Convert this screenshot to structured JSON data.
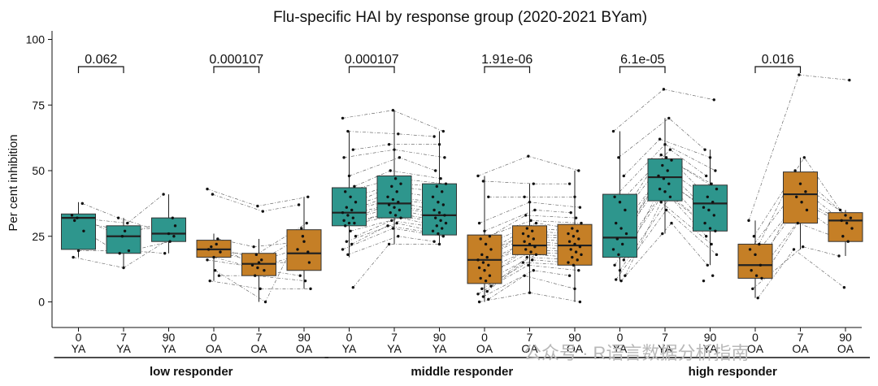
{
  "chart_data": {
    "type": "box",
    "title": "Flu-specific HAI by response group (2020-2021 BYam)",
    "ylabel": "Per cent inhibition",
    "ylim": [
      -5,
      103
    ],
    "yticks": [
      0,
      25,
      50,
      75,
      100
    ],
    "colors": {
      "YA": "#2e968d",
      "OA": "#c57f26"
    },
    "groups": [
      {
        "name": "low responder",
        "boxes": [
          {
            "day": "0",
            "age": "YA",
            "min": 17,
            "q1": 20,
            "median": 32,
            "q3": 33.5,
            "max": 38
          },
          {
            "day": "7",
            "age": "YA",
            "min": 13,
            "q1": 18.5,
            "median": 25,
            "q3": 29,
            "max": 32
          },
          {
            "day": "90",
            "age": "YA",
            "min": 18.5,
            "q1": 23,
            "median": 26,
            "q3": 32,
            "max": 41
          },
          {
            "day": "0",
            "age": "OA",
            "min": 8,
            "q1": 17,
            "median": 20,
            "q3": 23.5,
            "max": 26
          },
          {
            "day": "7",
            "age": "OA",
            "min": 0,
            "q1": 10,
            "median": 14.5,
            "q3": 18.5,
            "max": 24
          },
          {
            "day": "90",
            "age": "OA",
            "min": 5,
            "q1": 12,
            "median": 18.5,
            "q3": 27.5,
            "max": 40
          }
        ],
        "pvalues": [
          {
            "label": "0.062"
          },
          {
            "label": "0.000107"
          }
        ]
      },
      {
        "name": "middle responder",
        "boxes": [
          {
            "day": "0",
            "age": "YA",
            "min": 17,
            "q1": 29,
            "median": 34,
            "q3": 43.5,
            "max": 65
          },
          {
            "day": "7",
            "age": "YA",
            "min": 22,
            "q1": 32,
            "median": 37.5,
            "q3": 48,
            "max": 73
          },
          {
            "day": "90",
            "age": "YA",
            "min": 21.5,
            "q1": 25.5,
            "median": 33,
            "q3": 45,
            "max": 65
          },
          {
            "day": "0",
            "age": "OA",
            "min": 0,
            "q1": 7,
            "median": 16,
            "q3": 25.5,
            "max": 48
          },
          {
            "day": "7",
            "age": "OA",
            "min": 3.5,
            "q1": 18,
            "median": 21.5,
            "q3": 29,
            "max": 45
          },
          {
            "day": "90",
            "age": "OA",
            "min": 0,
            "q1": 14,
            "median": 21.5,
            "q3": 29.5,
            "max": 50
          }
        ],
        "pvalues": [
          {
            "label": "0.000107"
          },
          {
            "label": "1.91e-06"
          }
        ]
      },
      {
        "name": "high responder",
        "boxes": [
          {
            "day": "0",
            "age": "YA",
            "min": 8,
            "q1": 17,
            "median": 24.5,
            "q3": 41,
            "max": 65
          },
          {
            "day": "7",
            "age": "YA",
            "min": 26,
            "q1": 38.5,
            "median": 47.5,
            "q3": 54.5,
            "max": 70
          },
          {
            "day": "90",
            "age": "YA",
            "min": 14,
            "q1": 27,
            "median": 37.5,
            "q3": 44.5,
            "max": 58
          },
          {
            "day": "0",
            "age": "OA",
            "min": 1.5,
            "q1": 9,
            "median": 14,
            "q3": 22,
            "max": 31
          },
          {
            "day": "7",
            "age": "OA",
            "min": 20,
            "q1": 30,
            "median": 41,
            "q3": 49.5,
            "max": 55
          },
          {
            "day": "90",
            "age": "OA",
            "min": 17.5,
            "q1": 23,
            "median": 31,
            "q3": 34,
            "max": 35
          }
        ],
        "pvalues": [
          {
            "label": "6.1e-05"
          },
          {
            "label": "0.016"
          }
        ]
      }
    ],
    "points": [
      [
        [
          33,
          32,
          37.5,
          17,
          19.5,
          27,
          31
        ],
        [
          25,
          30,
          32,
          13,
          19.5,
          18.5,
          27
        ],
        [
          32,
          41,
          26,
          25,
          18.5,
          23,
          29
        ]
      ],
      [
        [
          43,
          41,
          24,
          20,
          17,
          10,
          8,
          12,
          19,
          21,
          22,
          16
        ],
        [
          36.5,
          34.5,
          21,
          15,
          12,
          10,
          5,
          0,
          18,
          16,
          14,
          13
        ],
        [
          40,
          37,
          23,
          15,
          10,
          8,
          5,
          28,
          30,
          20,
          25,
          19
        ]
      ],
      [
        [
          70,
          65,
          58,
          55,
          48,
          44,
          42,
          40,
          38,
          36,
          35,
          34,
          33,
          32,
          31,
          30,
          30,
          29,
          27,
          25,
          23,
          22,
          20,
          18,
          5.5
        ],
        [
          73,
          64,
          60,
          58,
          55,
          50,
          47,
          45,
          44,
          42,
          40,
          39,
          38,
          37,
          36,
          35,
          34,
          33,
          32,
          31,
          30,
          29,
          28,
          25,
          22
        ],
        [
          65,
          63,
          60,
          55,
          50,
          47,
          45,
          44,
          42,
          40,
          38,
          37,
          35,
          34,
          33,
          32,
          31,
          30,
          29,
          28,
          27,
          26,
          25,
          23,
          22
        ]
      ],
      [
        [
          48,
          46,
          40,
          30,
          27,
          25,
          24,
          22,
          20,
          18,
          17,
          16,
          15,
          14,
          13,
          12,
          10,
          9,
          8,
          6,
          5,
          4,
          3,
          2,
          1,
          0
        ],
        [
          55.5,
          45,
          40,
          38,
          35,
          33,
          31,
          30,
          28,
          27,
          26,
          25,
          24,
          23,
          22,
          21,
          20,
          19,
          18,
          17,
          16,
          15,
          14,
          12,
          10,
          3.5
        ],
        [
          50,
          45,
          40,
          36,
          34,
          32,
          30,
          28,
          27,
          26,
          25,
          24,
          23,
          22,
          21,
          20,
          19,
          18,
          17,
          16,
          15,
          14,
          12,
          10,
          5,
          0
        ]
      ],
      [
        [
          65,
          55,
          48,
          40,
          38,
          35,
          30,
          28,
          26,
          24,
          22,
          20,
          18,
          16,
          14,
          12,
          10,
          8.5,
          8
        ],
        [
          81,
          70,
          62,
          60,
          58,
          56,
          55,
          54,
          52,
          50,
          48,
          47,
          45,
          43,
          42,
          40,
          38,
          35,
          30,
          26
        ],
        [
          77,
          58,
          55,
          50,
          48,
          45,
          43,
          40,
          38,
          36,
          35,
          33,
          30,
          28,
          27,
          25,
          22,
          18,
          14,
          10,
          8
        ]
      ],
      [
        [
          31,
          25,
          22,
          20,
          18,
          14,
          12,
          10,
          9,
          5,
          1.5
        ],
        [
          86.5,
          55,
          50,
          45,
          42,
          40,
          38,
          35,
          30,
          21,
          20
        ],
        [
          84.5,
          35,
          33,
          32,
          31,
          30,
          28,
          25,
          23,
          17.5,
          5.5
        ]
      ]
    ]
  },
  "watermark": "公众号 · R语言数据分析指南"
}
